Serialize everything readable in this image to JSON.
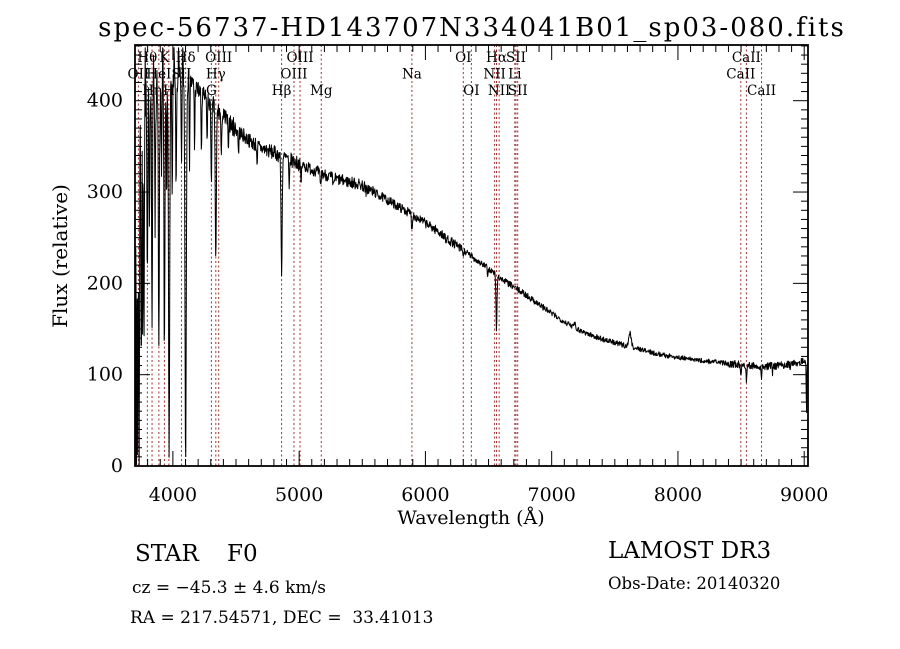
{
  "title": "spec-56737-HD143707N334041B01_sp03-080.fits",
  "annotations": {
    "object_class": "STAR",
    "subclass": "F0",
    "cz_line": "cz = −45.3 ± 4.6 km/s",
    "radec_line": "RA = 217.54571, DEC =  33.41013",
    "survey": "LAMOST DR3",
    "obs_date_line": "Obs-Date: 20140320"
  },
  "chart_data": {
    "type": "line",
    "title": "spec-56737-HD143707N334041B01_sp03-080.fits",
    "xlabel": "Wavelength (Å)",
    "ylabel": "Flux (relative)",
    "xlim": [
      3700,
      9030
    ],
    "ylim": [
      0,
      461
    ],
    "x_ticks": [
      4000,
      5000,
      6000,
      7000,
      8000,
      9000
    ],
    "y_ticks": [
      0,
      100,
      200,
      300,
      400
    ],
    "x_minor_interval": 100,
    "y_minor_interval": 10,
    "grid": false,
    "legend": "none",
    "trace_color": "#000000",
    "refline_color": "#a03232",
    "seed": 7,
    "spectral_lines": [
      {
        "label": "OII",
        "wavelength": 3727,
        "row": 2
      },
      {
        "label": "Hθ",
        "wavelength": 3798,
        "row": 1
      },
      {
        "label": "Hη",
        "wavelength": 3835,
        "row": 3
      },
      {
        "label": "HeI",
        "wavelength": 3889,
        "row": 2
      },
      {
        "label": "K",
        "wavelength": 3933,
        "row": 1
      },
      {
        "label": "H",
        "wavelength": 3968,
        "row": 3
      },
      {
        "label": "SII",
        "wavelength": 4068,
        "row": 2
      },
      {
        "label": "Hδ",
        "wavelength": 4101,
        "row": 1
      },
      {
        "label": "G",
        "wavelength": 4305,
        "row": 3
      },
      {
        "label": "Hγ",
        "wavelength": 4340,
        "row": 2
      },
      {
        "label": "OIII",
        "wavelength": 4363,
        "row": 1
      },
      {
        "label": "Hβ",
        "wavelength": 4861,
        "row": 3
      },
      {
        "label": "OIII",
        "wavelength": 4959,
        "row": 2
      },
      {
        "label": "OIII",
        "wavelength": 5007,
        "row": 1
      },
      {
        "label": "Mg",
        "wavelength": 5175,
        "row": 3
      },
      {
        "label": "Na",
        "wavelength": 5893,
        "row": 2
      },
      {
        "label": "OI",
        "wavelength": 6300,
        "row": 1
      },
      {
        "label": "OI",
        "wavelength": 6364,
        "row": 3
      },
      {
        "label": "NII",
        "wavelength": 6548,
        "row": 2
      },
      {
        "label": "Hα",
        "wavelength": 6563,
        "row": 1
      },
      {
        "label": "NII",
        "wavelength": 6584,
        "row": 3
      },
      {
        "label": "Li",
        "wavelength": 6708,
        "row": 2
      },
      {
        "label": "SII",
        "wavelength": 6717,
        "row": 1
      },
      {
        "label": "SII",
        "wavelength": 6731,
        "row": 3
      },
      {
        "label": "CaII",
        "wavelength": 8498,
        "row": 2
      },
      {
        "label": "CaII",
        "wavelength": 8542,
        "row": 1
      },
      {
        "label": "CaII",
        "wavelength": 8662,
        "row": 3
      }
    ],
    "continuum": [
      [
        3700,
        340
      ],
      [
        3760,
        390
      ],
      [
        3800,
        398
      ],
      [
        3850,
        403
      ],
      [
        3900,
        406
      ],
      [
        3950,
        410
      ],
      [
        4000,
        415
      ],
      [
        4060,
        423
      ],
      [
        4120,
        424
      ],
      [
        4180,
        414
      ],
      [
        4250,
        403
      ],
      [
        4310,
        396
      ],
      [
        4380,
        385
      ],
      [
        4480,
        371
      ],
      [
        4600,
        357
      ],
      [
        4700,
        348
      ],
      [
        4800,
        343
      ],
      [
        4900,
        337
      ],
      [
        5000,
        331
      ],
      [
        5150,
        322
      ],
      [
        5300,
        314
      ],
      [
        5490,
        308
      ],
      [
        5600,
        299
      ],
      [
        5700,
        291
      ],
      [
        5800,
        283
      ],
      [
        5900,
        275
      ],
      [
        6000,
        266
      ],
      [
        6100,
        257
      ],
      [
        6200,
        246
      ],
      [
        6300,
        236
      ],
      [
        6400,
        226
      ],
      [
        6500,
        216
      ],
      [
        6600,
        205
      ],
      [
        6700,
        196
      ],
      [
        6800,
        187
      ],
      [
        6900,
        177
      ],
      [
        7000,
        167
      ],
      [
        7100,
        158
      ],
      [
        7200,
        150
      ],
      [
        7300,
        144
      ],
      [
        7400,
        139
      ],
      [
        7500,
        135
      ],
      [
        7600,
        131
      ],
      [
        7700,
        128
      ],
      [
        7800,
        124
      ],
      [
        7900,
        121
      ],
      [
        8000,
        119
      ],
      [
        8100,
        117
      ],
      [
        8200,
        115
      ],
      [
        8300,
        114
      ],
      [
        8400,
        112
      ],
      [
        8500,
        111
      ],
      [
        8600,
        110
      ],
      [
        8700,
        109
      ],
      [
        8800,
        110
      ],
      [
        8900,
        112
      ],
      [
        9000,
        115
      ],
      [
        9030,
        116
      ]
    ],
    "absorption_lines": [
      [
        3703,
        330,
        2.5
      ],
      [
        3712,
        370,
        2.5
      ],
      [
        3721,
        300,
        2.5
      ],
      [
        3728,
        200,
        2.5
      ],
      [
        3734,
        345,
        2.5
      ],
      [
        3742,
        -55,
        2
      ],
      [
        3750,
        270,
        3
      ],
      [
        3760,
        205,
        2.5
      ],
      [
        3771,
        240,
        3
      ],
      [
        3781,
        -50,
        2
      ],
      [
        3798,
        215,
        3.5
      ],
      [
        3815,
        125,
        2.5
      ],
      [
        3825,
        -45,
        2
      ],
      [
        3835,
        245,
        3.5
      ],
      [
        3848,
        -40,
        2
      ],
      [
        3860,
        140,
        2.5
      ],
      [
        3875,
        -45,
        2
      ],
      [
        3889,
        295,
        4
      ],
      [
        3910,
        120,
        2.5
      ],
      [
        3920,
        -40,
        2
      ],
      [
        3933,
        270,
        4
      ],
      [
        3950,
        150,
        2.5
      ],
      [
        3970,
        390,
        4.5
      ],
      [
        3995,
        130,
        2.5
      ],
      [
        4010,
        -40,
        2
      ],
      [
        4026,
        120,
        3
      ],
      [
        4045,
        -42,
        2.5
      ],
      [
        4068,
        95,
        3
      ],
      [
        4078,
        -38,
        2.5
      ],
      [
        4101,
        420,
        5
      ],
      [
        4132,
        90,
        2.5
      ],
      [
        4172,
        70,
        2.5
      ],
      [
        4226,
        62,
        3
      ],
      [
        4271,
        50,
        2.5
      ],
      [
        4305,
        78,
        4
      ],
      [
        4340,
        170,
        4.5
      ],
      [
        4383,
        58,
        2.5
      ],
      [
        4438,
        35,
        2.5
      ],
      [
        4520,
        28,
        2.5
      ],
      [
        4668,
        25,
        2.5
      ],
      [
        4861,
        128,
        4.5
      ],
      [
        4921,
        38,
        3
      ],
      [
        5015,
        22,
        3
      ],
      [
        5169,
        15,
        4
      ],
      [
        5270,
        11,
        3.5
      ],
      [
        5530,
        9,
        3
      ],
      [
        5893,
        17,
        3.5
      ],
      [
        6162,
        7,
        3
      ],
      [
        6300,
        7,
        3
      ],
      [
        6494,
        9,
        3
      ],
      [
        6563,
        60,
        4
      ],
      [
        7180,
        -6,
        8
      ],
      [
        7620,
        -15,
        10
      ],
      [
        8498,
        13,
        3
      ],
      [
        8542,
        17,
        3
      ],
      [
        8662,
        15,
        3
      ],
      [
        8750,
        8,
        2.5
      ],
      [
        8890,
        7,
        2.5
      ],
      [
        9018,
        58,
        2.5
      ]
    ],
    "noise_bands": [
      [
        3700,
        3762,
        78
      ],
      [
        3762,
        3975,
        33
      ],
      [
        3975,
        4150,
        14
      ],
      [
        4150,
        4500,
        11
      ],
      [
        4500,
        5000,
        8
      ],
      [
        5000,
        5600,
        6.5
      ],
      [
        5600,
        6300,
        5
      ],
      [
        6300,
        7000,
        3.5
      ],
      [
        7000,
        7600,
        3
      ],
      [
        7600,
        8400,
        2.6
      ],
      [
        8400,
        9030,
        4
      ]
    ]
  }
}
